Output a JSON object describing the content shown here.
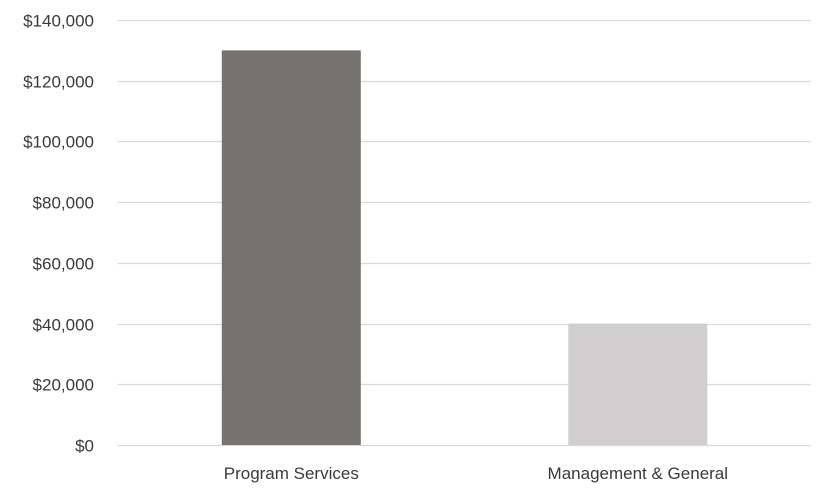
{
  "chart_data": {
    "type": "bar",
    "title": "",
    "xlabel": "",
    "ylabel": "",
    "categories": [
      "Program Services",
      "Management & General"
    ],
    "values": [
      130000,
      40000
    ],
    "bar_colors": [
      "#767270",
      "#d0cecf"
    ],
    "ylim": [
      0,
      140000
    ],
    "yticks": [
      0,
      20000,
      40000,
      60000,
      80000,
      100000,
      120000,
      140000
    ],
    "ytick_labels": [
      "$0",
      "$20,000",
      "$40,000",
      "$60,000",
      "$80,000",
      "$100,000",
      "$120,000",
      "$140,000"
    ],
    "grid": true,
    "grid_color": "#d9d9d9",
    "legend": "none"
  }
}
